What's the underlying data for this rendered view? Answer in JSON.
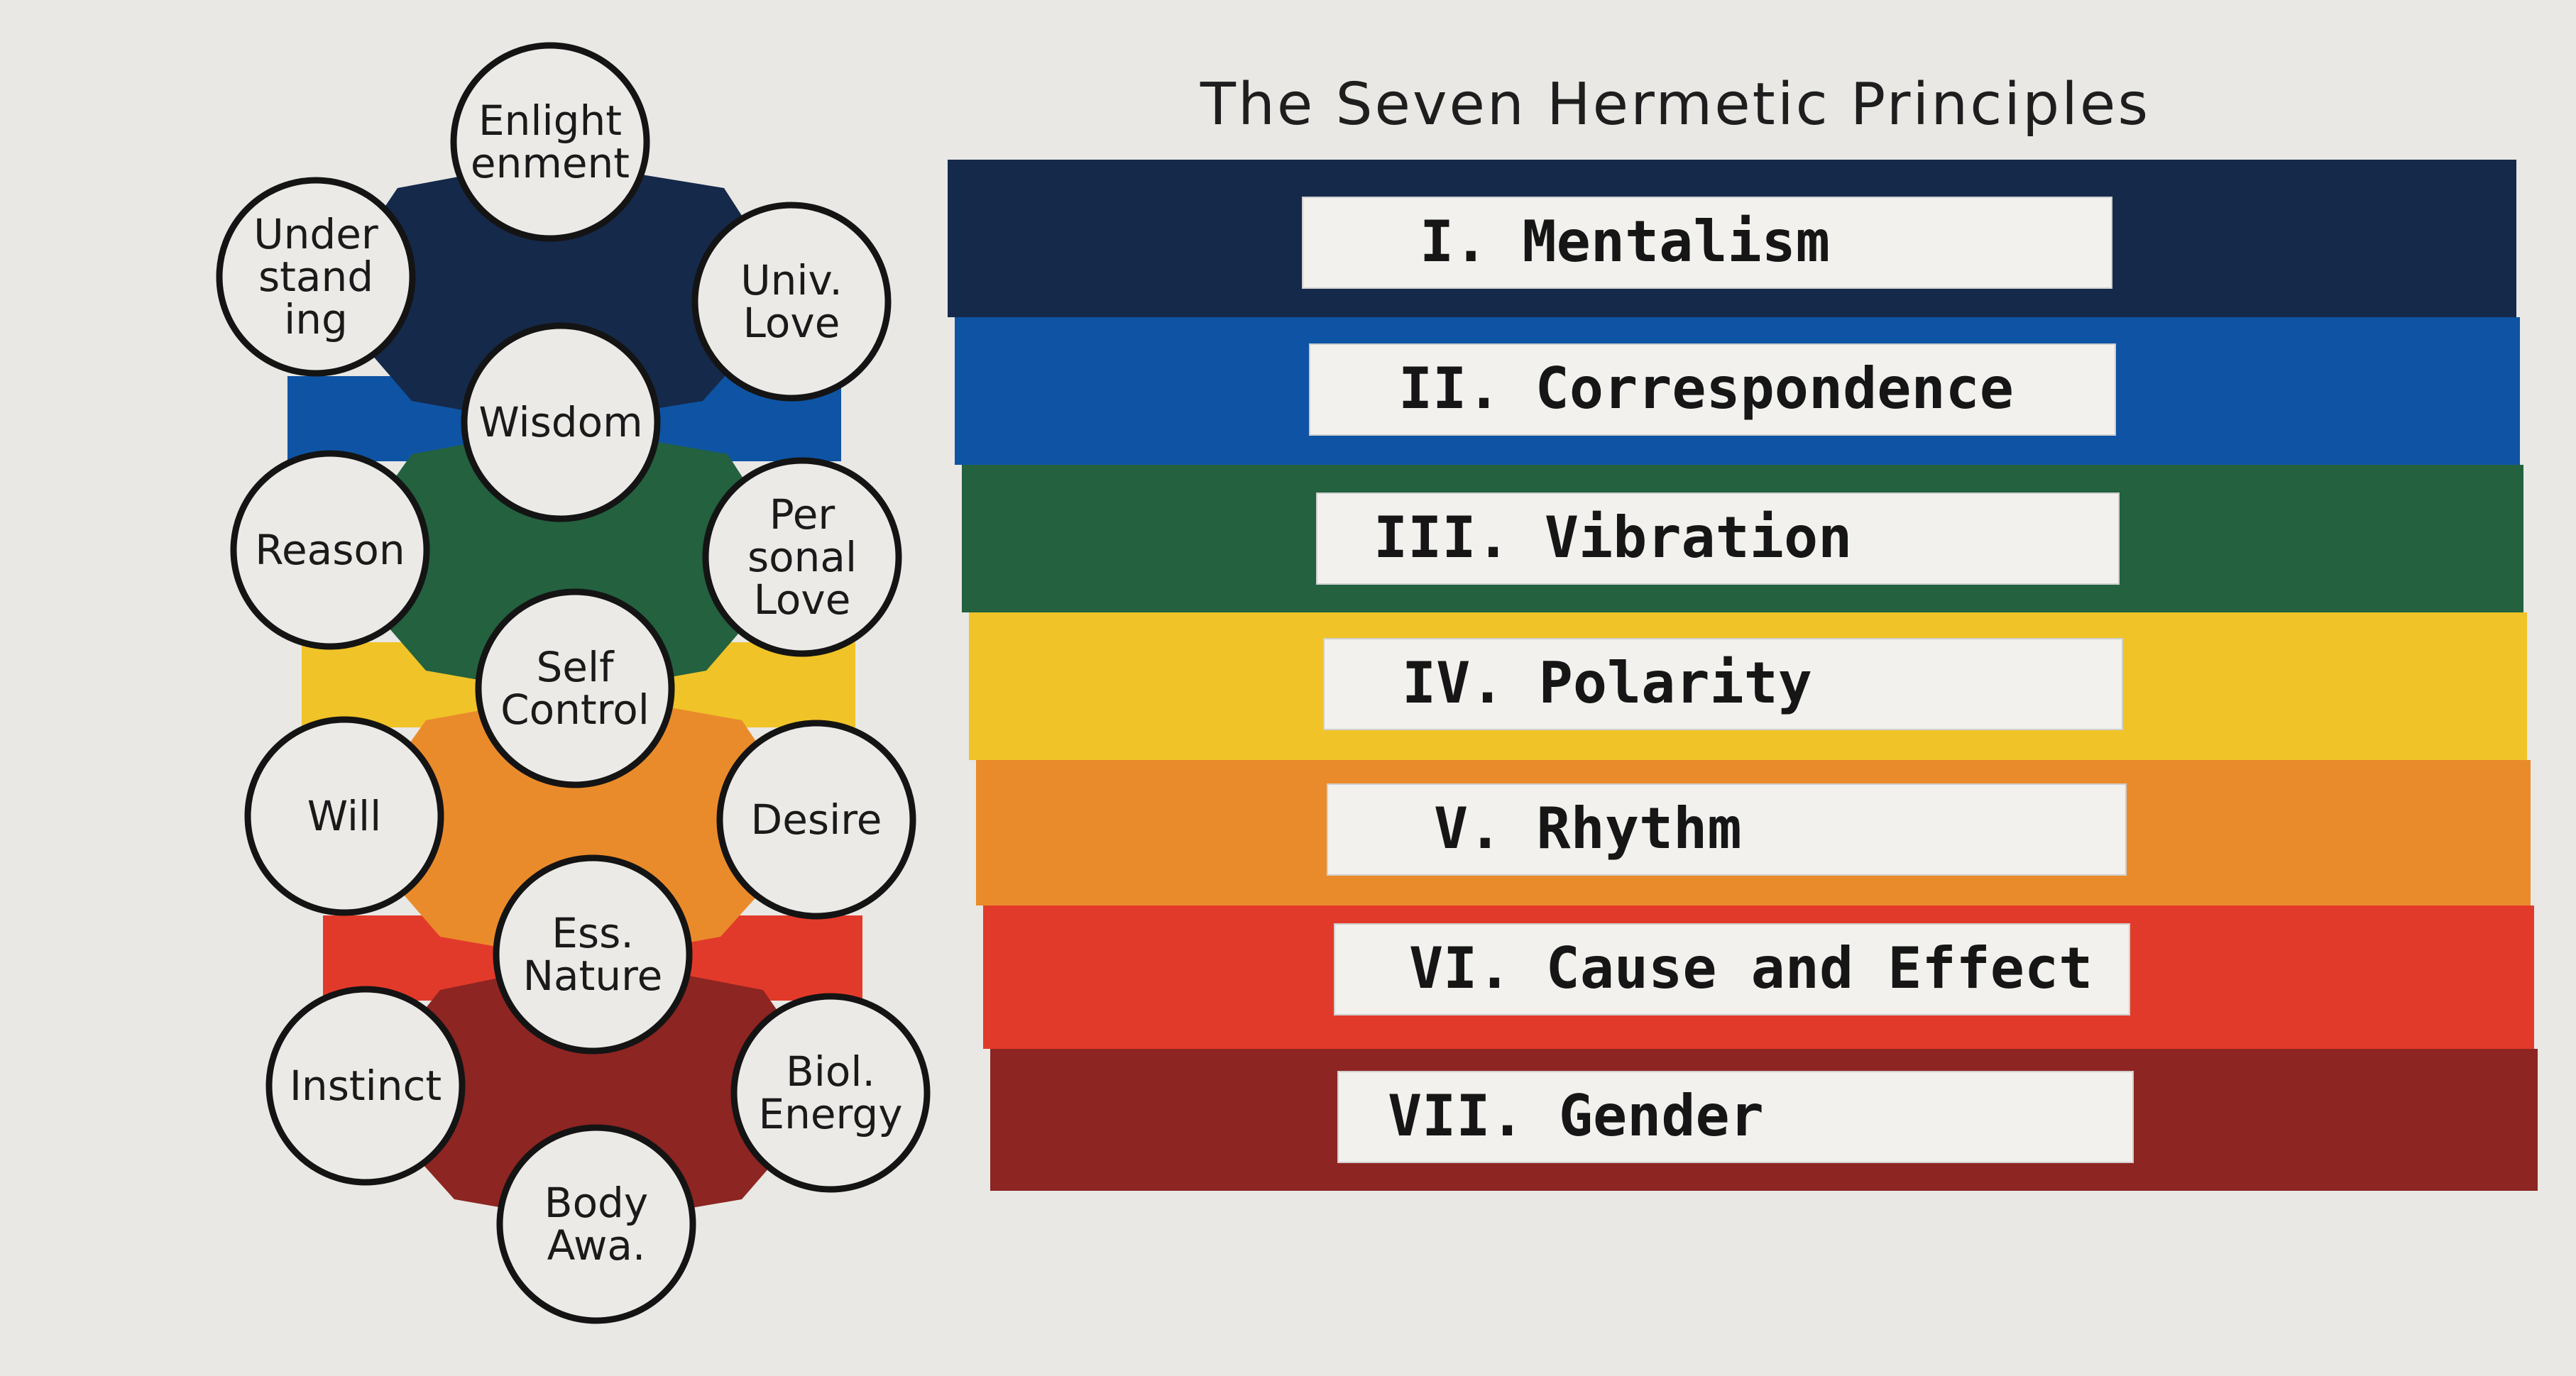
{
  "title": "The Seven Hermetic Principles",
  "principles": [
    {
      "label": "I. Mentalism",
      "color": "#15294a"
    },
    {
      "label": "II. Correspondence",
      "color": "#0f54a4"
    },
    {
      "label": "III. Vibration",
      "color": "#23613f"
    },
    {
      "label": "IV. Polarity",
      "color": "#f0c328"
    },
    {
      "label": "V. Rhythm",
      "color": "#ea8b2b"
    },
    {
      "label": "VI. Cause and Effect",
      "color": "#e23a2a"
    },
    {
      "label": "VII. Gender",
      "color": "#8d2522"
    }
  ],
  "nodes": [
    {
      "id": "enlightenment",
      "lines": [
        "Enlight",
        "enment"
      ]
    },
    {
      "id": "understanding",
      "lines": [
        "Under",
        "stand",
        "ing"
      ]
    },
    {
      "id": "universal-love",
      "lines": [
        "Univ.",
        "Love"
      ]
    },
    {
      "id": "wisdom",
      "lines": [
        "Wisdom"
      ]
    },
    {
      "id": "reason",
      "lines": [
        "Reason"
      ]
    },
    {
      "id": "personal-love",
      "lines": [
        "Per",
        "sonal",
        "Love"
      ]
    },
    {
      "id": "self-control",
      "lines": [
        "Self",
        "Control"
      ]
    },
    {
      "id": "will",
      "lines": [
        "Will"
      ]
    },
    {
      "id": "desire",
      "lines": [
        "Desire"
      ]
    },
    {
      "id": "essential-nature",
      "lines": [
        "Ess.",
        "Nature"
      ]
    },
    {
      "id": "instinct",
      "lines": [
        "Instinct"
      ]
    },
    {
      "id": "biological-energy",
      "lines": [
        "Biol.",
        "Energy"
      ]
    },
    {
      "id": "body-awareness",
      "lines": [
        "Body",
        "Awa."
      ]
    }
  ]
}
